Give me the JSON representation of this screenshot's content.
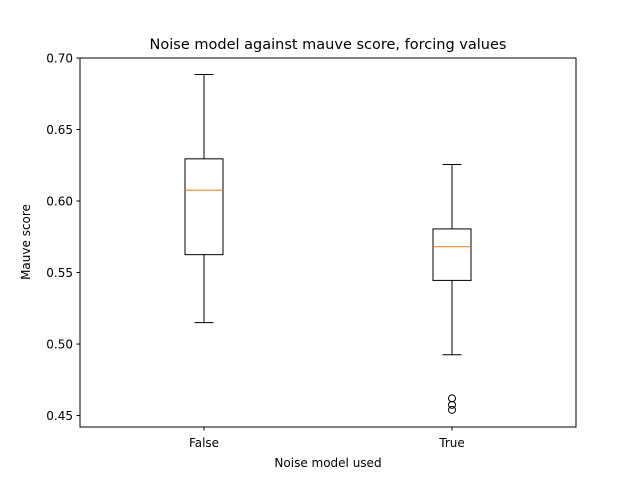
{
  "chart_data": {
    "type": "box",
    "title": "Noise model against mauve score, forcing values",
    "xlabel": "Noise model used",
    "ylabel": "Mauve score",
    "ylim": [
      0.442,
      0.7
    ],
    "yticks": [
      0.45,
      0.5,
      0.55,
      0.6,
      0.65,
      0.7
    ],
    "ytick_labels": [
      "0.45",
      "0.50",
      "0.55",
      "0.60",
      "0.65",
      "0.70"
    ],
    "categories": [
      "False",
      "True"
    ],
    "boxes": [
      {
        "category": "False",
        "whisker_low": 0.515,
        "q1": 0.5625,
        "median": 0.6075,
        "q3": 0.6295,
        "whisker_high": 0.6885,
        "outliers": []
      },
      {
        "category": "True",
        "whisker_low": 0.4925,
        "q1": 0.5445,
        "median": 0.568,
        "q3": 0.5805,
        "whisker_high": 0.6255,
        "outliers": [
          0.462,
          0.4575,
          0.454
        ]
      }
    ],
    "grid": false,
    "colors": {
      "box": "#000000",
      "median": "#ff7f0e",
      "background": "#ffffff"
    }
  }
}
